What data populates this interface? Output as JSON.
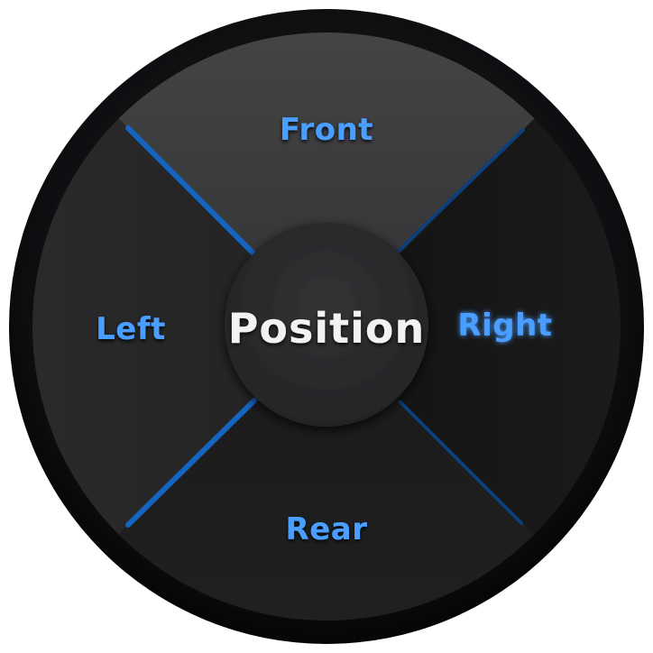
{
  "center": {
    "label": "Position"
  },
  "segments": {
    "front": {
      "label": "Front"
    },
    "right": {
      "label": "Right"
    },
    "rear": {
      "label": "Rear"
    },
    "left": {
      "label": "Left"
    }
  },
  "colors": {
    "accent": "#4a9eff",
    "divider": "#1565c0",
    "center_text": "#f2f2f2",
    "outer_ring": "#0d0d10",
    "front_fill": "#3c3c3e",
    "side_fill": "#262627",
    "right_fill": "#161617",
    "rear_fill": "#1c1c1d",
    "hub_fill": "#2b2b2c"
  }
}
